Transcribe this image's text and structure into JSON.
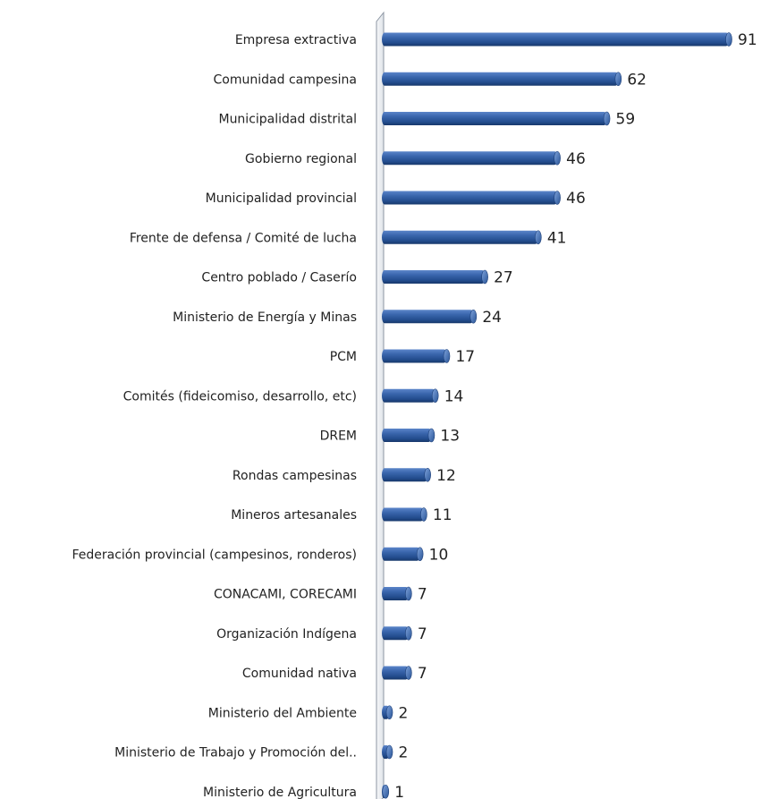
{
  "chart_data": {
    "type": "bar",
    "orientation": "horizontal",
    "style": "3d-cylinder",
    "title": "",
    "xlabel": "",
    "ylabel": "",
    "xlim": [
      0,
      91
    ],
    "grid": false,
    "legend": "none",
    "bar_color": "#2f5597",
    "categories": [
      "Empresa extractiva",
      "Comunidad campesina",
      "Municipalidad distrital",
      "Gobierno regional",
      "Municipalidad provincial",
      "Frente de defensa / Comité de lucha",
      "Centro poblado / Caserío",
      "Ministerio de Energía y Minas",
      "PCM",
      "Comités (fideicomiso, desarrollo, etc)",
      "DREM",
      "Rondas campesinas",
      "Mineros artesanales",
      "Federación provincial (campesinos, ronderos)",
      "CONACAMI, CORECAMI",
      "Organización Indígena",
      "Comunidad nativa",
      "Ministerio del Ambiente",
      "Ministerio de Trabajo y Promoción del..",
      "Ministerio de Agricultura"
    ],
    "values": [
      91,
      62,
      59,
      46,
      46,
      41,
      27,
      24,
      17,
      14,
      13,
      12,
      11,
      10,
      7,
      7,
      7,
      2,
      2,
      1
    ]
  }
}
